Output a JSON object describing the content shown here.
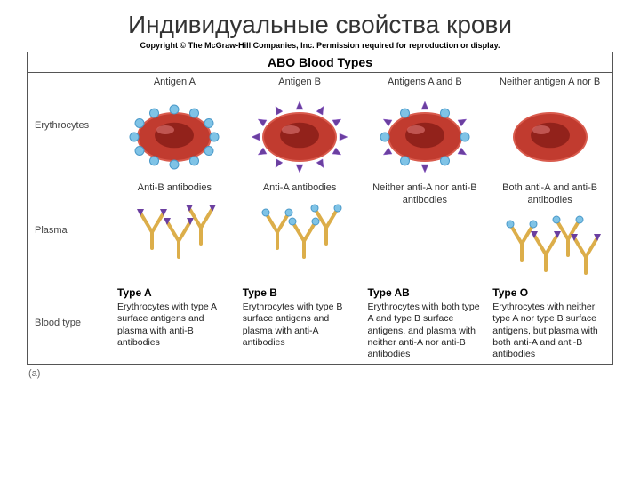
{
  "title": "Индивидуальные свойства крови",
  "copyright": "Copyright © The McGraw-Hill Companies, Inc. Permission required for reproduction or display.",
  "table_title": "ABO Blood Types",
  "figure_label": "(a)",
  "rows": {
    "erythrocytes": "Erythrocytes",
    "plasma": "Plasma",
    "blood_type": "Blood type"
  },
  "colors": {
    "cell_body": "#c13b2f",
    "cell_center": "#8a1f18",
    "cell_rim": "#d95b4d",
    "antigen_a": "#7fc3e6",
    "antigen_a_stroke": "#4a99c9",
    "antigen_b": "#6b3fa0",
    "antigen_b_light": "#9a6dd1",
    "antibody": "#dcae4a",
    "antibody_stroke": "#b78326",
    "row_erythro_bg": "#ead7d3",
    "row_plasma_bg": "#fce7c3",
    "row_type_bg": "#d8e8f0"
  },
  "columns": [
    {
      "antigen_header": "Antigen A",
      "antibody_header": "Anti-B antibodies",
      "type_title": "Type A",
      "type_desc": "Erythrocytes with type A surface antigens and plasma with anti-B antibodies",
      "antigens": "A",
      "antibodies": "B"
    },
    {
      "antigen_header": "Antigen B",
      "antibody_header": "Anti-A antibodies",
      "type_title": "Type B",
      "type_desc": "Erythrocytes with type B surface antigens and plasma with anti-A antibodies",
      "antigens": "B",
      "antibodies": "A"
    },
    {
      "antigen_header": "Antigens A and B",
      "antibody_header": "Neither anti-A nor anti-B antibodies",
      "type_title": "Type AB",
      "type_desc": "Erythrocytes with both type A and type B surface antigens, and plasma with neither anti-A nor anti-B antibodies",
      "antigens": "AB",
      "antibodies": "none"
    },
    {
      "antigen_header": "Neither antigen A nor B",
      "antibody_header": "Both anti-A and anti-B antibodies",
      "type_title": "Type O",
      "type_desc": "Erythrocytes with neither type A nor type B surface antigens, but plasma with both anti-A and anti-B antibodies",
      "antigens": "none",
      "antibodies": "AB"
    }
  ]
}
